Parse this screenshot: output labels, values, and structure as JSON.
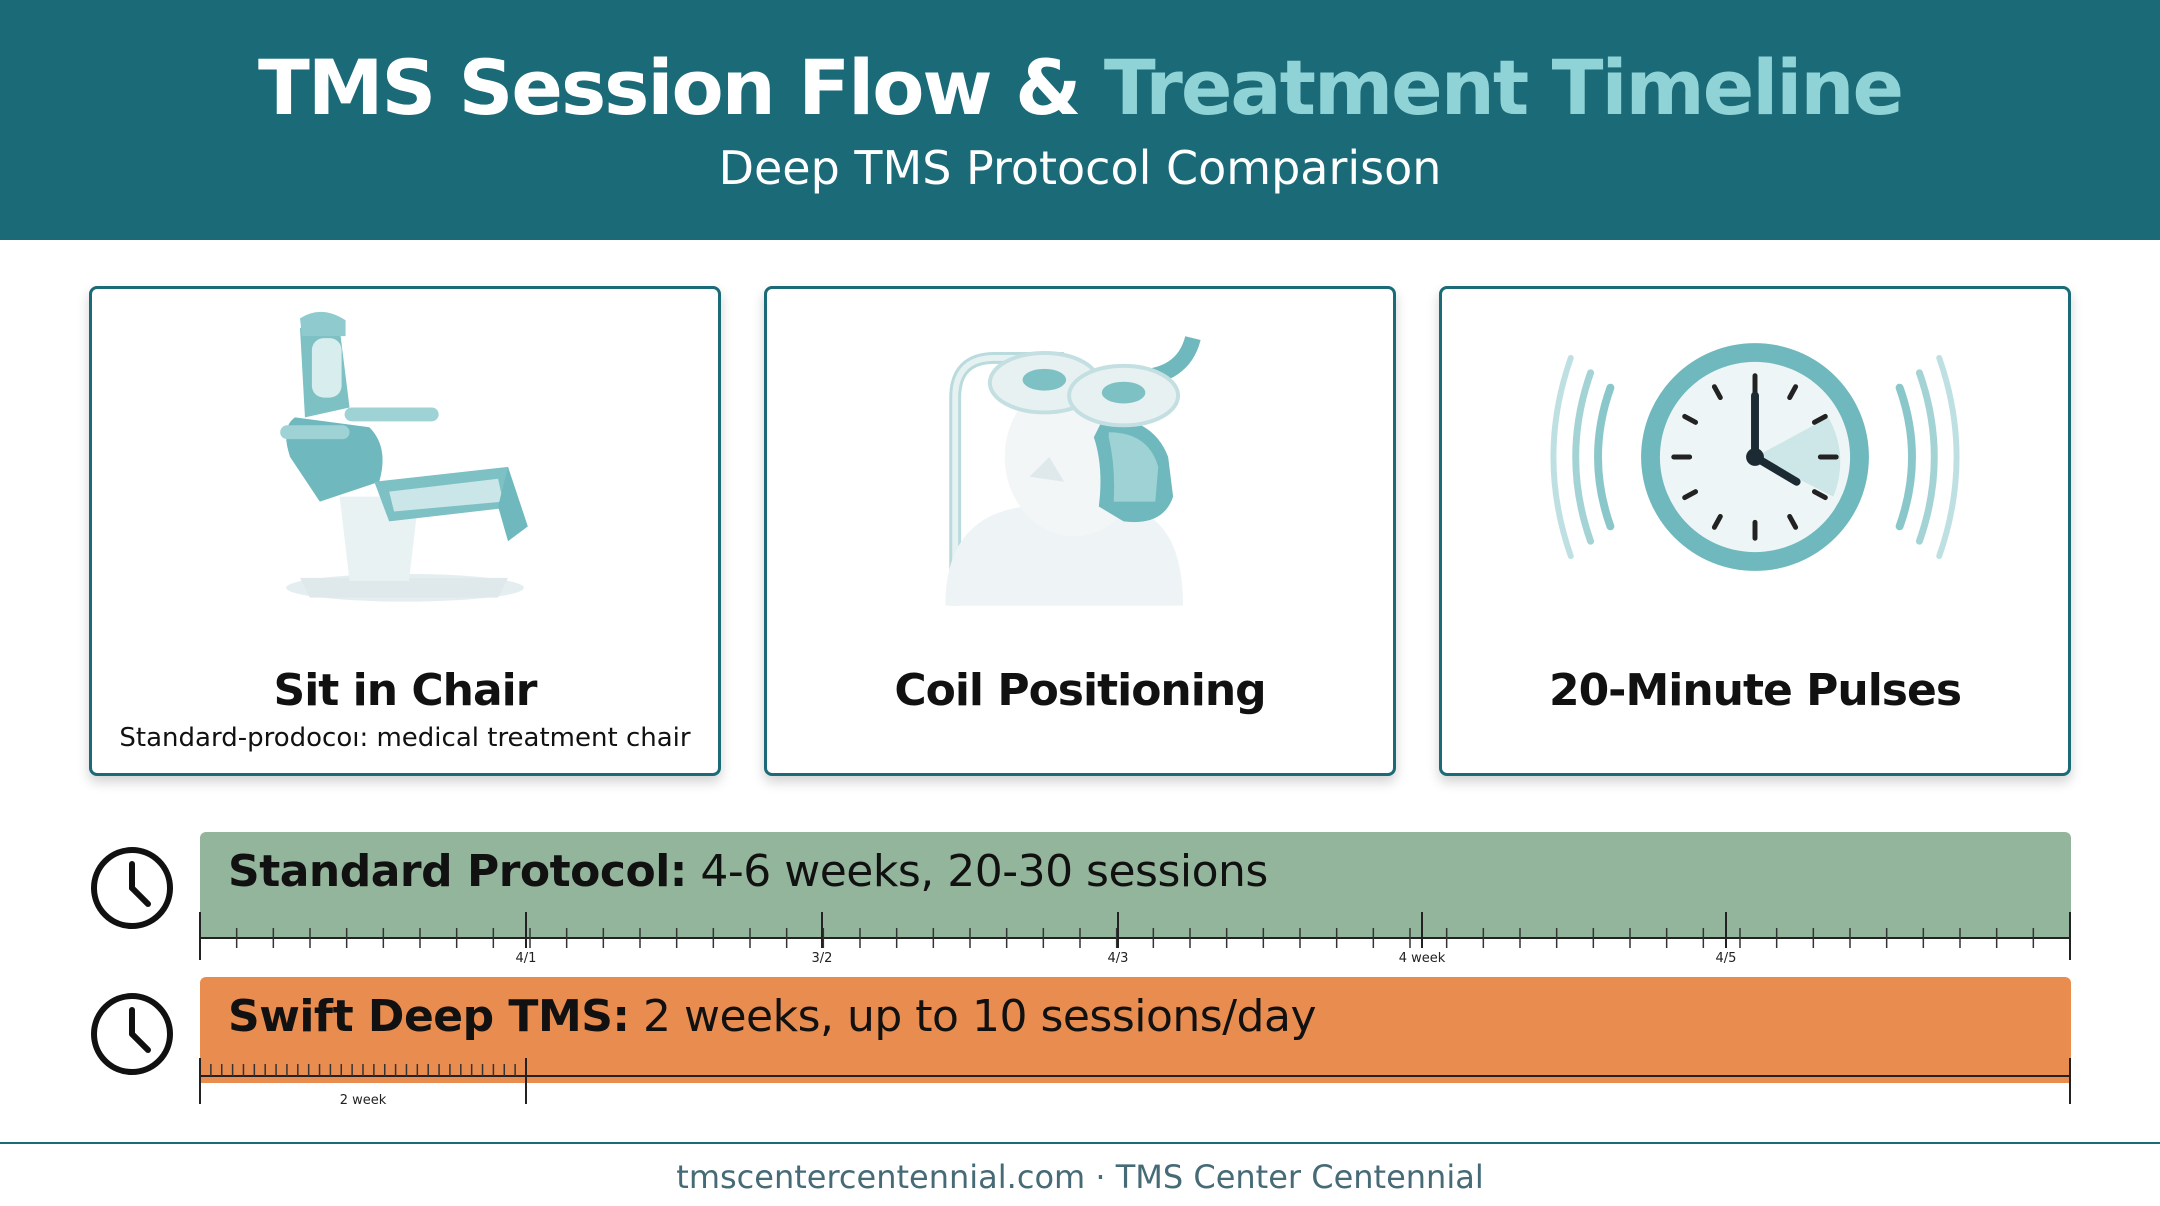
{
  "header": {
    "title_main": "TMS Session Flow & ",
    "title_accent": "Treatment Timeline",
    "subtitle": "Deep TMS Protocol Comparison"
  },
  "cards": [
    {
      "title": "Sit in Chair",
      "caption": "Standard-prodocoı: medical treatment chair",
      "icon": "treatment-chair"
    },
    {
      "title": "Coil Positioning",
      "caption": "",
      "icon": "tms-coil-head"
    },
    {
      "title": "20-Minute Pulses",
      "caption": "",
      "icon": "pulsing-clock"
    }
  ],
  "timelines": {
    "standard": {
      "label_bold": "Standard Protocol:",
      "label_rest": " 4-6 weeks, 20-30 sessions",
      "tick_labels": [
        "4/1",
        "3/2",
        "4/3",
        "4 week",
        "4/5"
      ]
    },
    "swift": {
      "label_bold": "Swift Deep TMS:",
      "label_rest": " 2 weeks, up to 10 sessions/day",
      "tick_labels": [
        "2 week"
      ]
    }
  },
  "footer": {
    "text": "tmscentercentennial.com · TMS Center Centennial"
  },
  "colors": {
    "header_bg": "#1b6a78",
    "accent": "#8fd3d6",
    "standard_bar": "#93b59b",
    "swift_bar": "#e98c4f",
    "teal_icon": "#6fb8bd"
  }
}
